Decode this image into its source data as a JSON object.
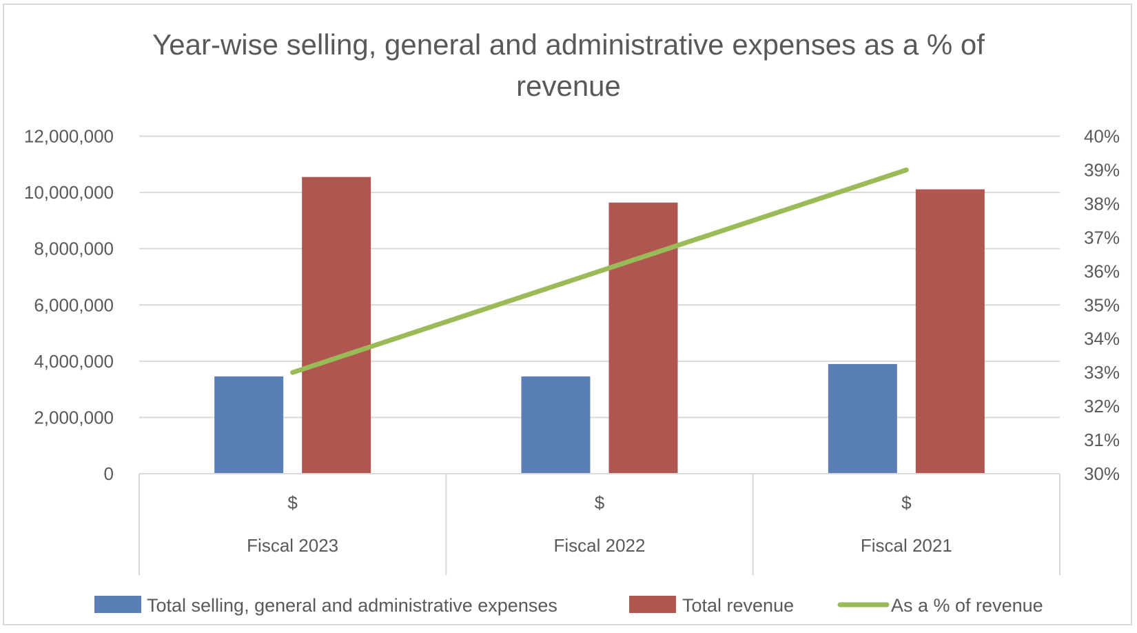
{
  "chart_data": {
    "type": "bar",
    "title": "Year-wise selling, general and administrative expenses as a % of revenue",
    "title_lines": [
      "Year-wise selling, general and administrative expenses as a % of",
      "revenue"
    ],
    "categories": [
      "Fiscal 2023",
      "Fiscal 2022",
      "Fiscal 2021"
    ],
    "category_sublabels": [
      "$",
      "$",
      "$"
    ],
    "series": [
      {
        "name": "Total selling, general and administrative expenses",
        "type": "bar",
        "axis": "left",
        "color": "#5a7fb6",
        "values": [
          3460000,
          3460000,
          3900000
        ]
      },
      {
        "name": "Total revenue",
        "type": "bar",
        "axis": "left",
        "color": "#b05650",
        "values": [
          10550000,
          9640000,
          10110000
        ]
      },
      {
        "name": "As a % of revenue",
        "type": "line",
        "axis": "right",
        "color": "#9bbb59",
        "values": [
          0.33,
          0.36,
          0.39
        ]
      }
    ],
    "y_left": {
      "lim": [
        0,
        12000000
      ],
      "ticks": [
        0,
        2000000,
        4000000,
        6000000,
        8000000,
        10000000,
        12000000
      ],
      "tick_labels": [
        "0",
        "2,000,000",
        "4,000,000",
        "6,000,000",
        "8,000,000",
        "10,000,000",
        "12,000,000"
      ],
      "label": ""
    },
    "y_right": {
      "lim": [
        0.3,
        0.4
      ],
      "ticks": [
        0.3,
        0.31,
        0.32,
        0.33,
        0.34,
        0.35,
        0.36,
        0.37,
        0.38,
        0.39,
        0.4
      ],
      "tick_labels": [
        "30%",
        "31%",
        "32%",
        "33%",
        "34%",
        "35%",
        "36%",
        "37%",
        "38%",
        "39%",
        "40%"
      ],
      "label": ""
    },
    "xlabel": "",
    "grid": true,
    "legend": {
      "position": "bottom",
      "entries": [
        "Total selling, general and administrative expenses",
        "Total revenue",
        "As a % of revenue"
      ]
    },
    "colors": {
      "text": "#595959",
      "grid": "#d9d9d9"
    }
  }
}
